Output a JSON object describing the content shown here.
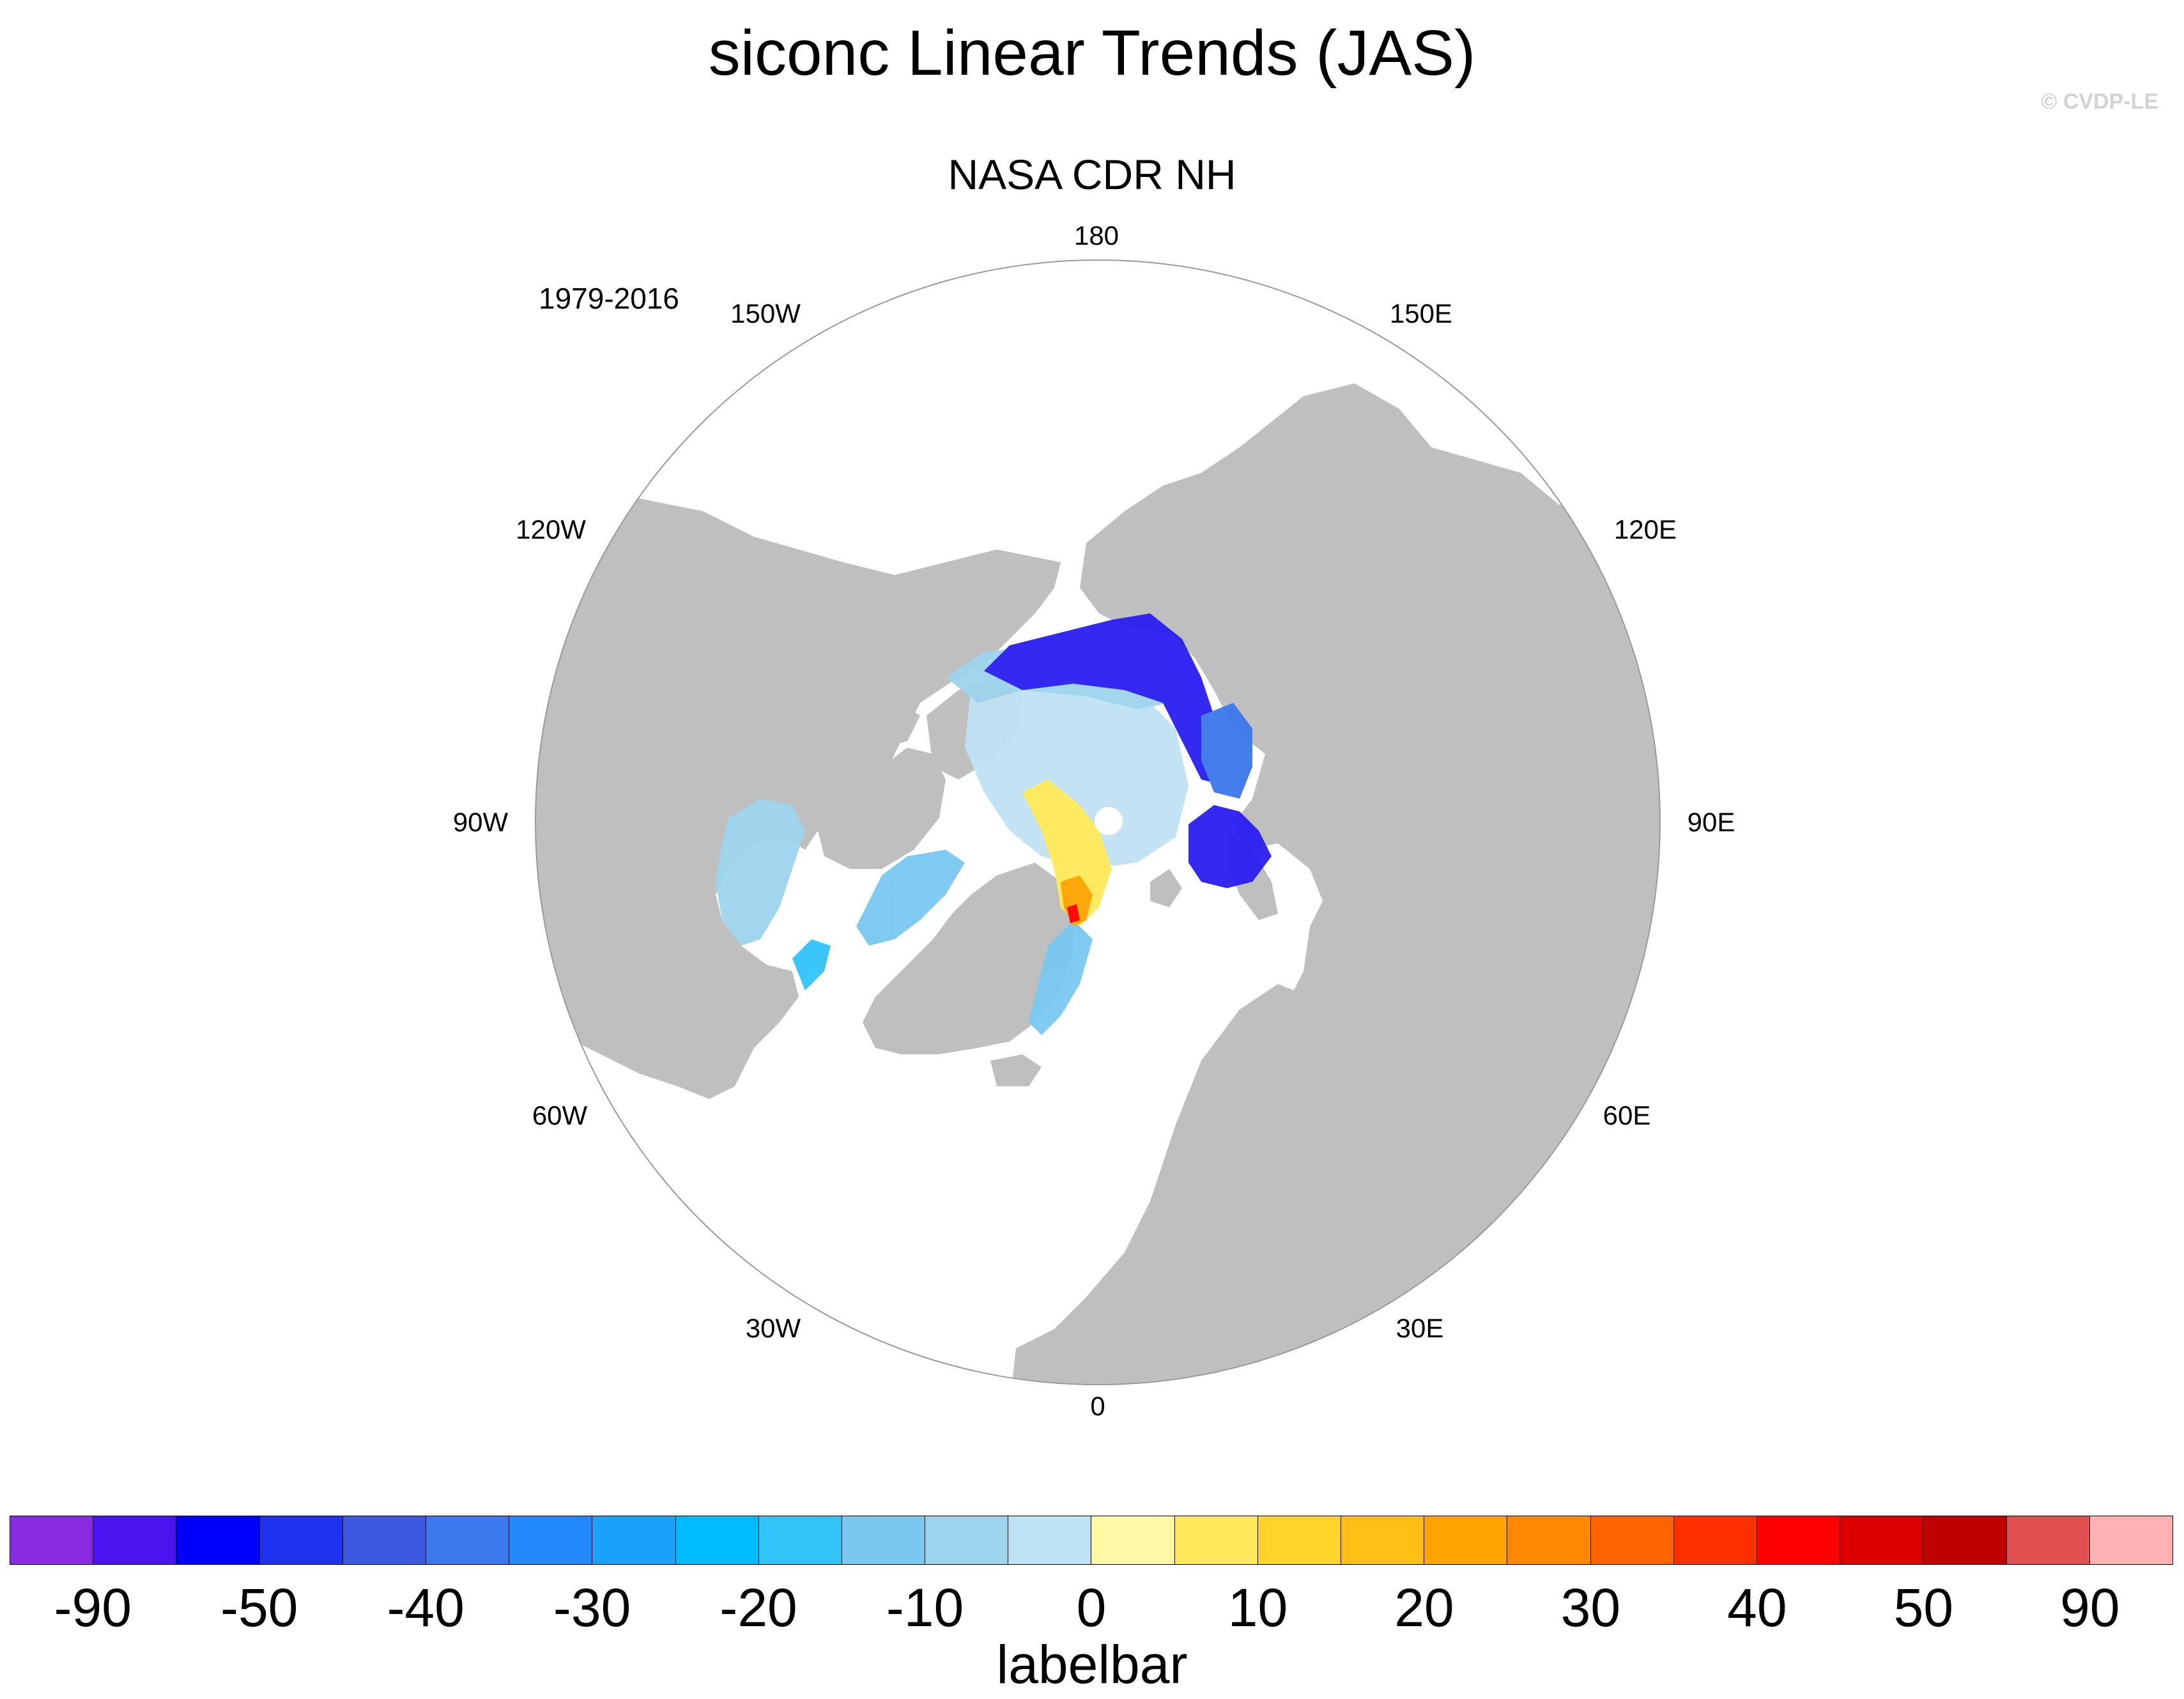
{
  "title": "siconc Linear Trends (JAS)",
  "copyright": "© CVDP-LE",
  "subtitle": "NASA CDR NH",
  "period": "1979-2016",
  "longitude_labels": [
    "180",
    "150E",
    "120E",
    "90E",
    "60E",
    "30E",
    "0",
    "30W",
    "60W",
    "90W",
    "120W",
    "150W"
  ],
  "colors": {
    "land": "#bfbfbf",
    "ocean": "#ffffff",
    "circle": "#9a9a9a"
  },
  "colorbar": {
    "colors": [
      "#8a2be2",
      "#4b14ee",
      "#0000ff",
      "#1e32ee",
      "#3c5ae0",
      "#3a78ec",
      "#2289fa",
      "#1aa0fa",
      "#00bcff",
      "#30c4f8",
      "#78c8f0",
      "#9ed4ee",
      "#bee2f4",
      "#fff9a6",
      "#ffe95a",
      "#ffd42a",
      "#ffbe14",
      "#ffa400",
      "#ff8800",
      "#ff6400",
      "#ff3000",
      "#ff0000",
      "#dc0000",
      "#c00000",
      "#e05050",
      "#ffb0b0"
    ],
    "labels": [
      "-90",
      "-50",
      "-40",
      "-30",
      "-20",
      "-10",
      "0",
      "10",
      "20",
      "30",
      "40",
      "50",
      "90"
    ],
    "title": "labelbar"
  }
}
